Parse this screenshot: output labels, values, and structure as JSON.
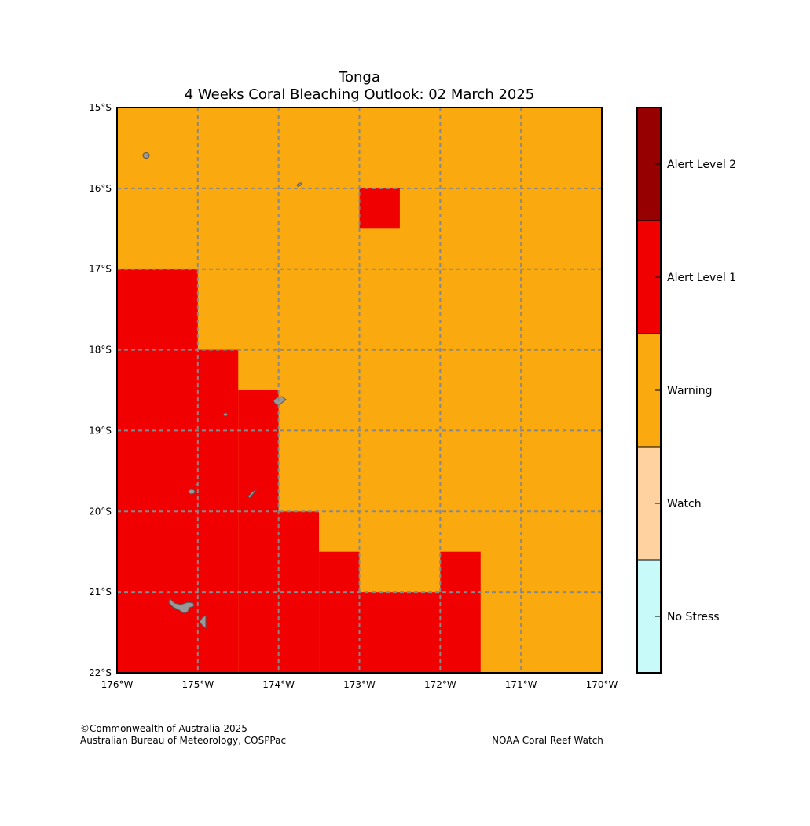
{
  "title": {
    "line1": "Tonga",
    "line2": "4 Weeks Coral Bleaching Outlook: 02 March 2025"
  },
  "map": {
    "lon_range": [
      -176,
      -170
    ],
    "lat_range": [
      -22,
      -15
    ],
    "x_ticks": [
      {
        "value": -176,
        "label": "176°W"
      },
      {
        "value": -175,
        "label": "175°W"
      },
      {
        "value": -174,
        "label": "174°W"
      },
      {
        "value": -173,
        "label": "173°W"
      },
      {
        "value": -172,
        "label": "172°W"
      },
      {
        "value": -171,
        "label": "171°W"
      },
      {
        "value": -170,
        "label": "170°W"
      }
    ],
    "y_ticks": [
      {
        "value": -15,
        "label": "15°S"
      },
      {
        "value": -16,
        "label": "16°S"
      },
      {
        "value": -17,
        "label": "17°S"
      },
      {
        "value": -18,
        "label": "18°S"
      },
      {
        "value": -19,
        "label": "19°S"
      },
      {
        "value": -20,
        "label": "20°S"
      },
      {
        "value": -21,
        "label": "21°S"
      },
      {
        "value": -22,
        "label": "22°S"
      }
    ],
    "gridlines": true,
    "background_level": "Warning",
    "alert_cells": [
      {
        "level": "Alert Level 1",
        "lon": [
          -173.0,
          -172.5
        ],
        "lat": [
          -16.5,
          -16.0
        ]
      },
      {
        "level": "Alert Level 1",
        "lon": [
          -176.0,
          -175.0
        ],
        "lat": [
          -22.0,
          -17.0
        ]
      },
      {
        "level": "Alert Level 1",
        "lon": [
          -175.0,
          -174.5
        ],
        "lat": [
          -22.0,
          -18.0
        ]
      },
      {
        "level": "Alert Level 1",
        "lon": [
          -174.5,
          -174.0
        ],
        "lat": [
          -22.0,
          -18.5
        ]
      },
      {
        "level": "Alert Level 1",
        "lon": [
          -174.0,
          -173.5
        ],
        "lat": [
          -22.0,
          -20.0
        ]
      },
      {
        "level": "Alert Level 1",
        "lon": [
          -173.5,
          -173.0
        ],
        "lat": [
          -22.0,
          -20.5
        ]
      },
      {
        "level": "Alert Level 1",
        "lon": [
          -173.0,
          -172.0
        ],
        "lat": [
          -22.0,
          -21.0
        ]
      },
      {
        "level": "Alert Level 1",
        "lon": [
          -172.0,
          -171.5
        ],
        "lat": [
          -22.0,
          -20.5
        ]
      }
    ]
  },
  "legend": {
    "levels": [
      {
        "label": "Alert Level 2",
        "color": "#960000"
      },
      {
        "label": "Alert Level 1",
        "color": "#f00000"
      },
      {
        "label": "Warning",
        "color": "#faaa0f"
      },
      {
        "label": "Watch",
        "color": "#ffd2a0"
      },
      {
        "label": "No Stress",
        "color": "#c8fafa"
      }
    ]
  },
  "credits": {
    "left_line1": "©Commonwealth of Australia 2025",
    "left_line2": "Australian Bureau of Meteorology, COSPPac",
    "right": "NOAA Coral Reef Watch"
  }
}
